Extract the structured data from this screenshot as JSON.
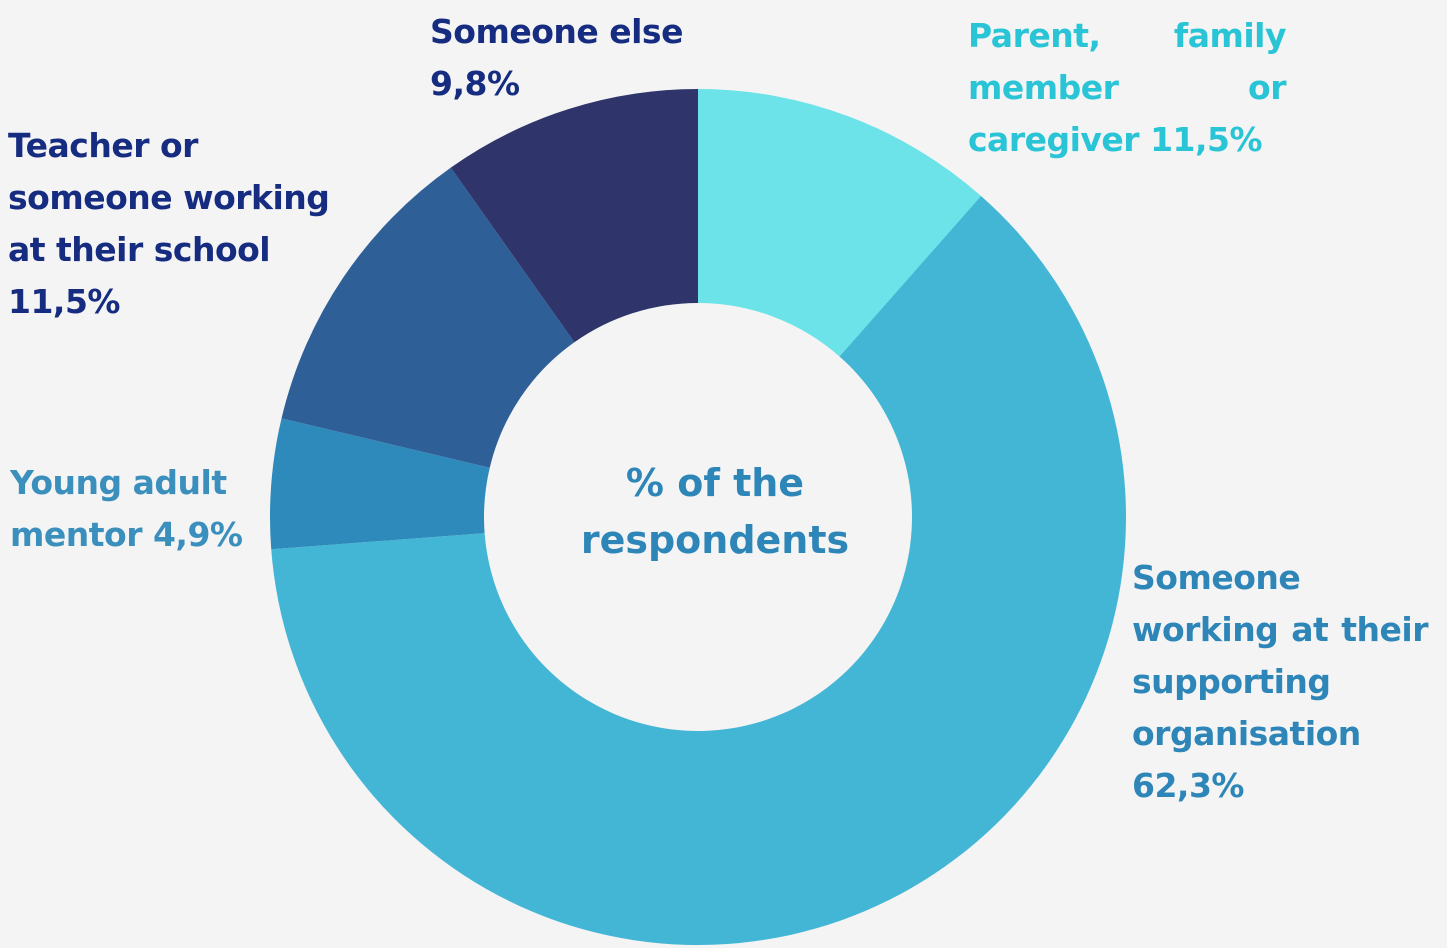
{
  "chart_data": {
    "type": "pie",
    "center_label": "% of the respondents",
    "slices": [
      {
        "label": "Parent, family member or caregiver",
        "value": 11.5,
        "value_text": "11,5%",
        "color": "#6be3e8"
      },
      {
        "label": "Someone working at their supporting organisation",
        "value": 62.3,
        "value_text": "62,3%",
        "color": "#43b6d6"
      },
      {
        "label": "Young adult mentor",
        "value": 4.9,
        "value_text": "4,9%",
        "color": "#2e8aba"
      },
      {
        "label": "Teacher or someone working at their school",
        "value": 11.5,
        "value_text": "11,5%",
        "color": "#2f5f97"
      },
      {
        "label": "Someone else",
        "value": 9.8,
        "value_text": "9,8%",
        "color": "#2f356a"
      }
    ]
  },
  "labels": {
    "parent": "Parent, family member or caregiver 11,5%",
    "org": "Someone working at their supporting organisation 62,3%",
    "mentor": "Young adult mentor 4,9%",
    "teacher": "Teacher or someone working at their school 11,5%",
    "else": "Someone else 9,8%"
  }
}
